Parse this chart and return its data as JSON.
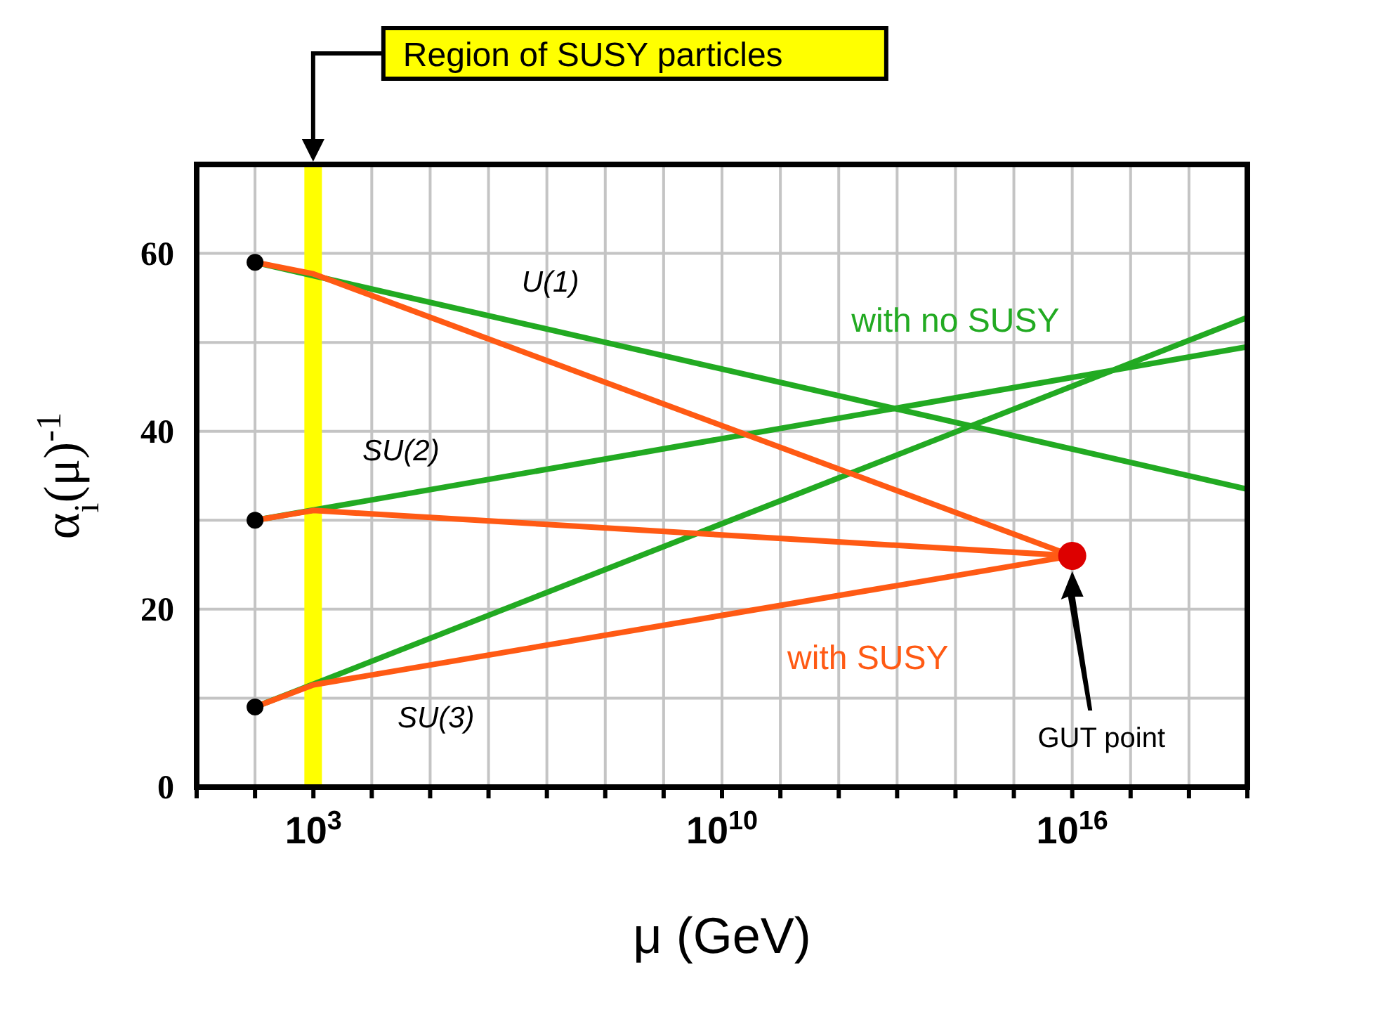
{
  "chart_data": {
    "type": "line",
    "xlabel": "μ (GeV)",
    "ylabel": "α$_{i}$(μ)$^{-1}$",
    "log": "x",
    "grid": true,
    "xlim": [
      10,
      1e+19
    ],
    "ylim": [
      0,
      70
    ],
    "xticks": [
      {
        "value": 10,
        "label": null
      },
      {
        "value": 100,
        "label": null
      },
      {
        "value": 1000,
        "label": "10$^{3}$"
      },
      {
        "value": 10000.0,
        "label": null
      },
      {
        "value": 100000.0,
        "label": null
      },
      {
        "value": 1000000.0,
        "label": null
      },
      {
        "value": 10000000.0,
        "label": null
      },
      {
        "value": 100000000.0,
        "label": null
      },
      {
        "value": 1000000000.0,
        "label": null
      },
      {
        "value": 10000000000.0,
        "label": "10$^{10}$"
      },
      {
        "value": 100000000000.0,
        "label": null
      },
      {
        "value": 1000000000000.0,
        "label": null
      },
      {
        "value": 10000000000000.0,
        "label": null
      },
      {
        "value": 100000000000000.0,
        "label": null
      },
      {
        "value": 1000000000000000.0,
        "label": null
      },
      {
        "value": 1e+16,
        "label": "10$^{16}$"
      },
      {
        "value": 1e+17,
        "label": null
      },
      {
        "value": 1e+18,
        "label": null
      },
      {
        "value": 1e+19,
        "label": null
      }
    ],
    "yticks": [
      0,
      {
        "value": 10,
        "label": null
      },
      20,
      {
        "value": 30,
        "label": null
      },
      40,
      {
        "value": 50,
        "label": null
      },
      60,
      {
        "value": 70,
        "label": null
      }
    ],
    "series": [
      {
        "color": "#22aa22",
        "x": [
          100,
          1e+19
        ],
        "values": [
          59,
          33.5
        ]
      },
      {
        "color": "#22aa22",
        "x": [
          100,
          1e+19
        ],
        "values": [
          30,
          49.5
        ]
      },
      {
        "color": "#22aa22",
        "x": [
          100,
          1e+19
        ],
        "values": [
          9,
          52.8
        ]
      },
      {
        "color": "#ff5a14",
        "x": [
          100,
          1000,
          1e+16
        ],
        "values": [
          59,
          57.7,
          26
        ]
      },
      {
        "color": "#ff5a14",
        "x": [
          100,
          1000,
          1e+16
        ],
        "values": [
          30,
          31.1,
          26
        ]
      },
      {
        "color": "#ff5a14",
        "x": [
          100,
          1000,
          1e+16
        ],
        "values": [
          9,
          11.5,
          26
        ]
      },
      {
        "type": "scatter",
        "color": "#000000",
        "marker": "circle",
        "x": [
          100,
          100,
          100
        ],
        "values": [
          59,
          30,
          9
        ]
      },
      {
        "type": "scatter",
        "color": "#dd0000",
        "marker": "circle",
        "x": [
          1e+16
        ],
        "values": [
          26
        ]
      }
    ],
    "bands": [
      {
        "axis": "x",
        "from": 700,
        "to": 1400,
        "color": "#ffff00"
      }
    ],
    "annotations": [
      "Region of SUSY particles",
      "U(1)",
      "SU(2)",
      "SU(3)",
      "with no SUSY",
      "with SUSY",
      "GUT point"
    ]
  }
}
